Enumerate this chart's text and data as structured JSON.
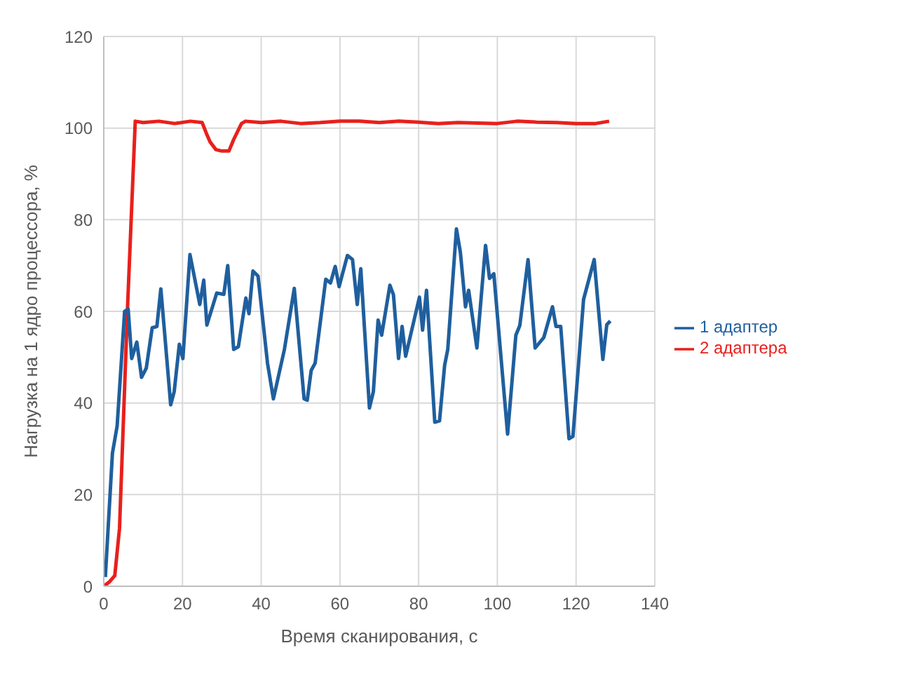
{
  "chart_data": {
    "type": "line",
    "xlabel": "Время сканирования, с",
    "ylabel": "Нагрузка на 1 ядро процессора, %",
    "xlim": [
      0,
      140
    ],
    "ylim": [
      0,
      120
    ],
    "xticks": [
      0,
      20,
      40,
      60,
      80,
      100,
      120,
      140
    ],
    "yticks": [
      0,
      20,
      40,
      60,
      80,
      100,
      120
    ],
    "grid": true,
    "legend": "right",
    "marker": "none",
    "line_style": "solid",
    "series": [
      {
        "name": "2 адаптера",
        "color": "#e8201c",
        "x": [
          0,
          1.5,
          2.8,
          4,
          6,
          8,
          10,
          14,
          18,
          22,
          25,
          26,
          27,
          28.5,
          30,
          31.8,
          33,
          35,
          36,
          40,
          45,
          50,
          55,
          60,
          65,
          70,
          75,
          80,
          85,
          90,
          95,
          100,
          105,
          110,
          115,
          120,
          125,
          128.4
        ],
        "values": [
          0,
          1,
          2.3,
          12.6,
          60,
          101.5,
          101.2,
          101.5,
          101,
          101.5,
          101.2,
          99,
          97,
          95.3,
          95,
          95,
          97.5,
          101,
          101.5,
          101.2,
          101.5,
          101,
          101.2,
          101.5,
          101.5,
          101.2,
          101.5,
          101.3,
          101,
          101.2,
          101.1,
          101,
          101.5,
          101.3,
          101.2,
          101,
          101,
          101.5
        ]
      },
      {
        "name": "1 адаптер",
        "color": "#1f5f9e",
        "x": [
          0.4,
          2.2,
          3.4,
          5.3,
          6.2,
          7.1,
          8.4,
          9.6,
          10.8,
          12.3,
          13.5,
          14.5,
          15.4,
          17,
          17.9,
          19.2,
          20.1,
          21.9,
          24.4,
          25.4,
          26.2,
          28.7,
          30.5,
          31.5,
          33,
          34.2,
          36.1,
          36.9,
          37.9,
          39.2,
          41.6,
          43.1,
          45.9,
          48.4,
          50.9,
          51.7,
          52.7,
          53.7,
          56.4,
          57.6,
          58.8,
          59.8,
          61.9,
          63.2,
          64.4,
          65.3,
          67.5,
          68.5,
          69.7,
          70.6,
          72.7,
          73.6,
          74.9,
          75.8,
          76.7,
          80.2,
          81,
          82,
          84.1,
          85.3,
          86.6,
          87.4,
          89.6,
          90.6,
          91.9,
          92.7,
          94.8,
          97,
          98,
          99.1,
          102.6,
          104.7,
          105.7,
          107.8,
          109.6,
          111.8,
          114,
          114.9,
          116.1,
          118.2,
          119.2,
          121.9,
          124.6,
          126.8,
          127.8,
          128.7
        ],
        "values": [
          2,
          29,
          35,
          60,
          60.5,
          49.7,
          53.3,
          45.6,
          47.6,
          56.4,
          56.7,
          64.9,
          55.9,
          39.6,
          42.5,
          52.8,
          49.7,
          72.4,
          61.5,
          66.8,
          57,
          64,
          63.7,
          70,
          51.7,
          52.3,
          62.9,
          59.5,
          68.8,
          67.7,
          48.7,
          40.9,
          51.7,
          65,
          40.9,
          40.6,
          47.1,
          48.7,
          67,
          66.2,
          69.8,
          65.4,
          72.2,
          71.3,
          61.5,
          69.3,
          38.9,
          42.5,
          58.1,
          54.8,
          65.7,
          63.6,
          49.7,
          56.7,
          50.2,
          63.1,
          55.9,
          64.6,
          35.8,
          36.1,
          48.2,
          51.7,
          78,
          72.9,
          61,
          64.6,
          52,
          74.4,
          67.2,
          68.2,
          33.2,
          54.8,
          56.9,
          71.3,
          52,
          54.3,
          61,
          56.7,
          56.7,
          32.2,
          32.7,
          62.6,
          71.3,
          49.5,
          57.1,
          57.9
        ]
      }
    ]
  }
}
